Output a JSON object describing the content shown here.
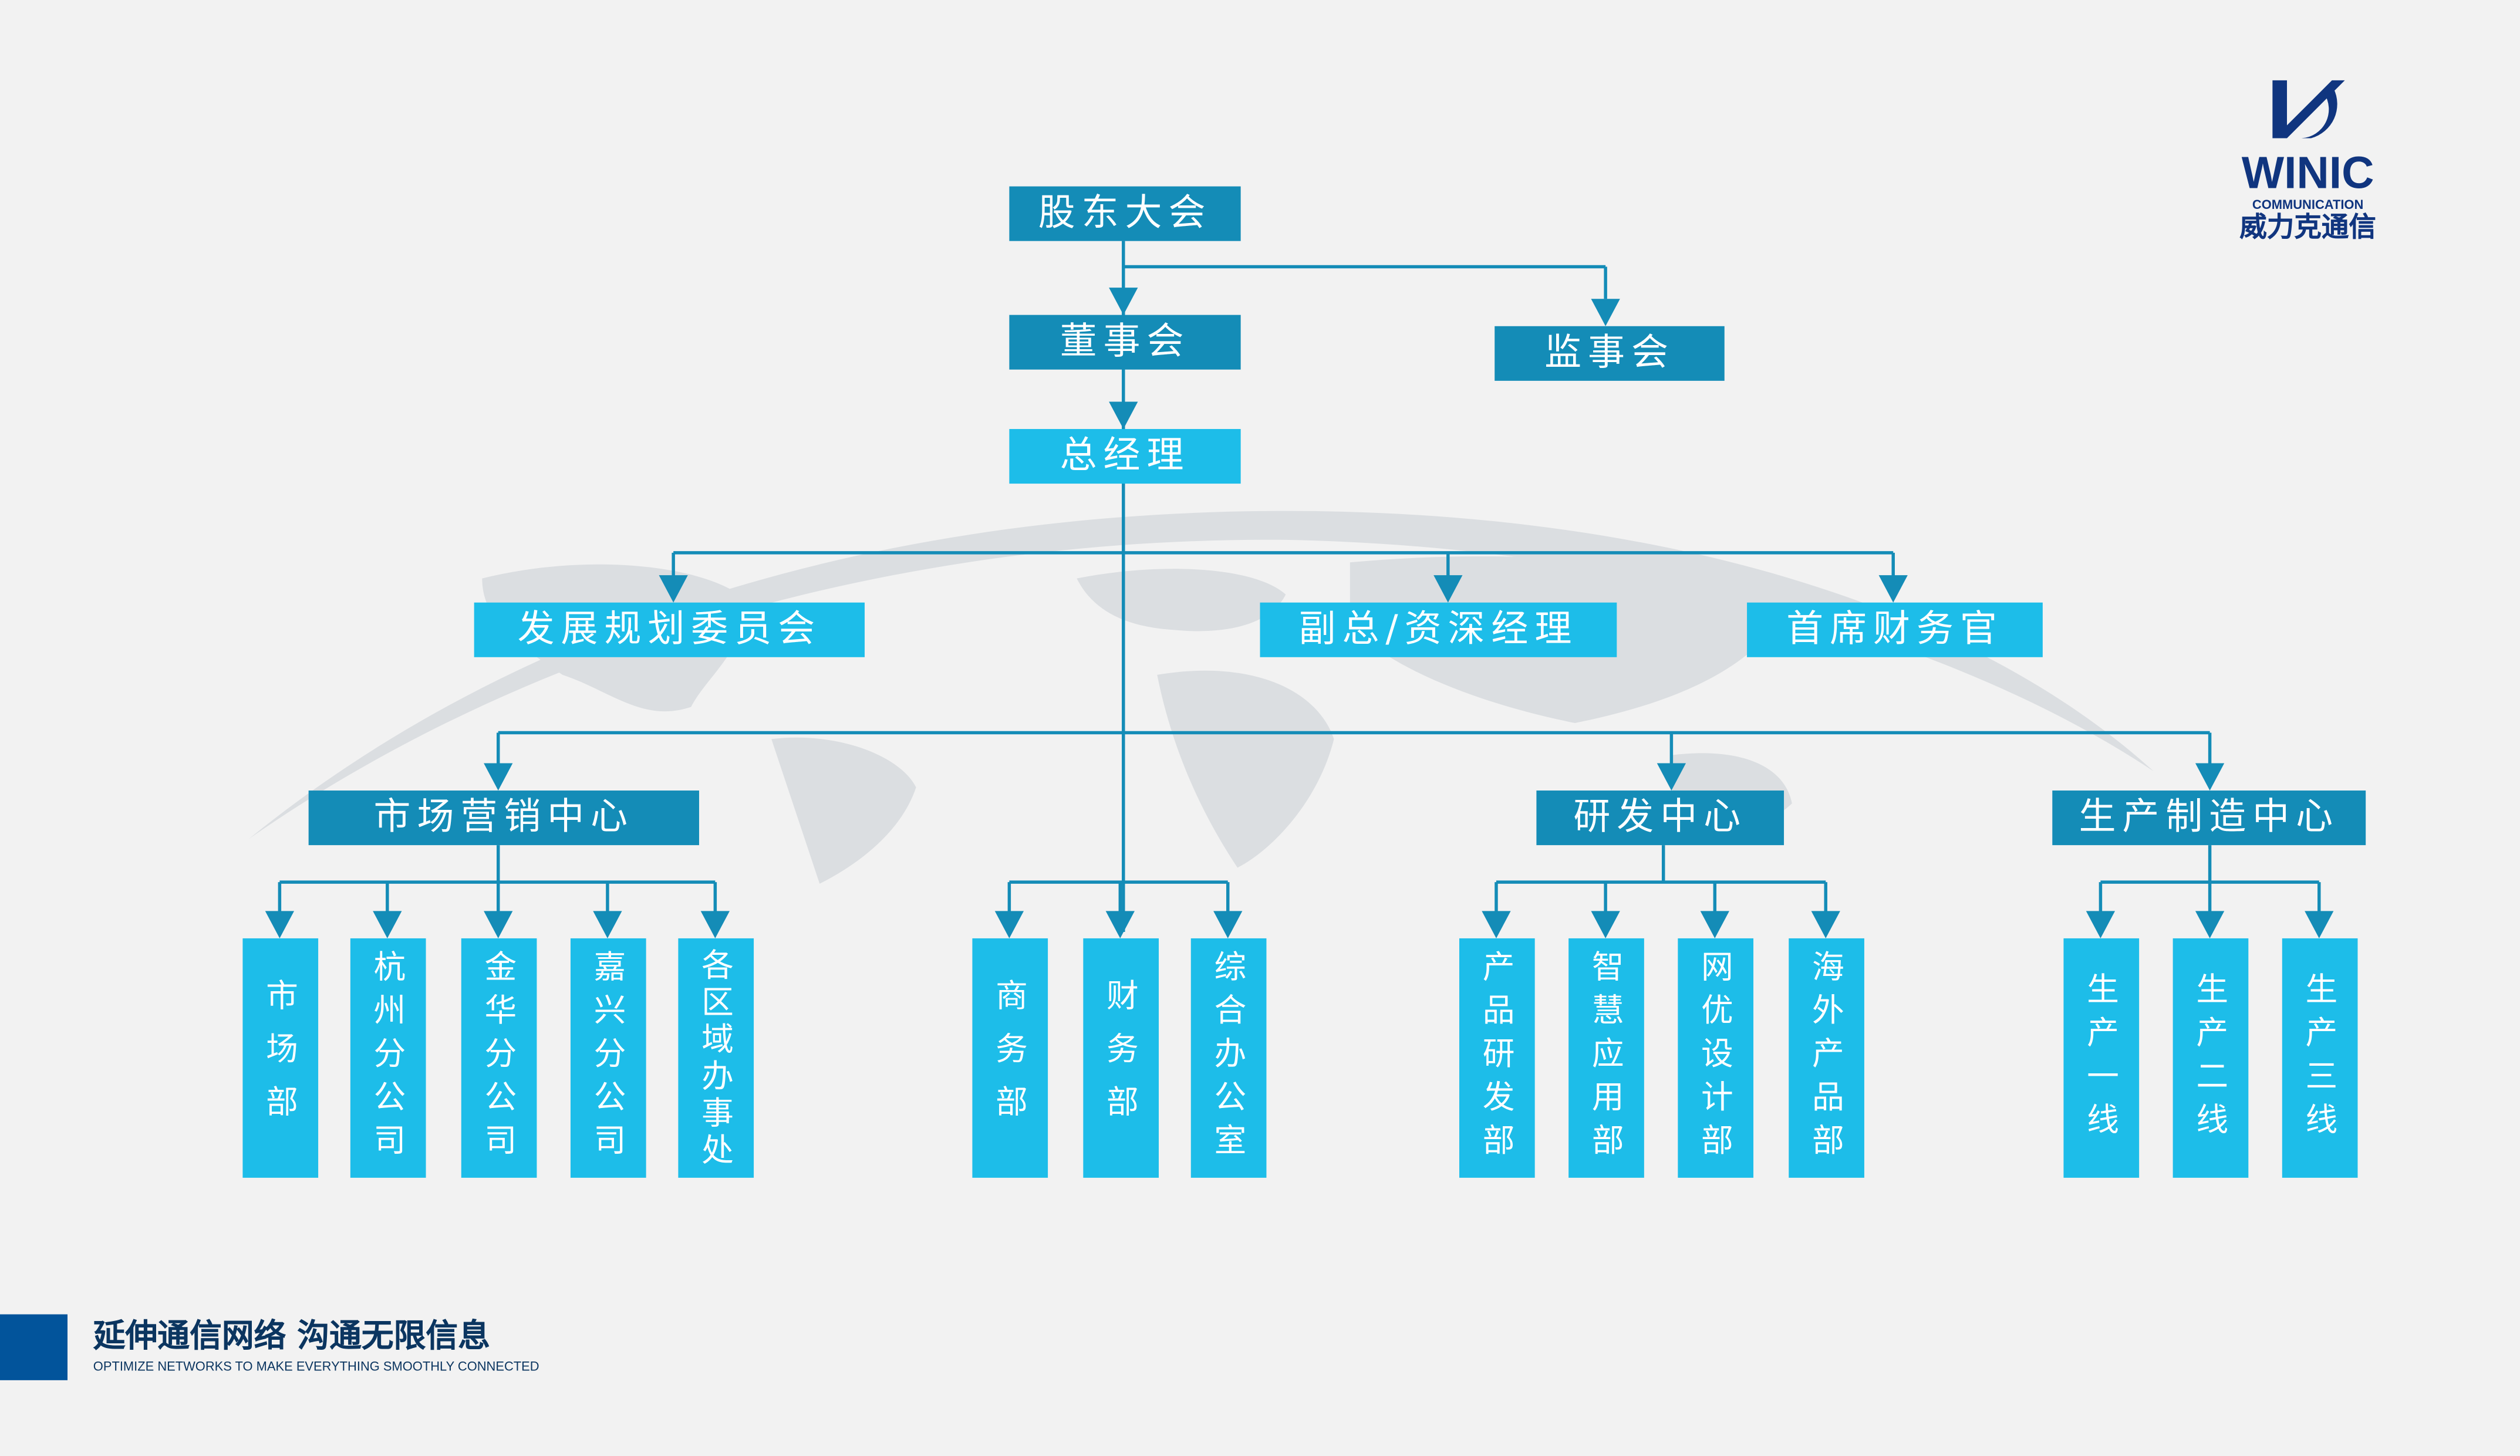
{
  "colors": {
    "dark": "#148cb7",
    "light": "#1dbde9",
    "line": "#148cb7",
    "brand": "#10357f",
    "footer_block": "#02549b",
    "background": "#f2f2f2"
  },
  "logo": {
    "name": "WINIC",
    "sub": "COMMUNICATION",
    "cn": "威力克通信"
  },
  "footer": {
    "slogan": "延伸通信网络 沟通无限信息",
    "tagline": "OPTIMIZE NETWORKS TO MAKE EVERYTHING SMOOTHLY CONNECTED"
  },
  "nodes": {
    "shareholders": "股东大会",
    "board": "董事会",
    "supervisors": "监事会",
    "gm": "总经理",
    "planning": "发展规划委员会",
    "vp": "副总/资深经理",
    "cfo": "首席财务官",
    "marketing_center": "市场营销中心",
    "rd_center": "研发中心",
    "manufacturing_center": "生产制造中心"
  },
  "departments": {
    "marketing": [
      "市场部",
      "杭州分公司",
      "金华分公司",
      "嘉兴分公司",
      "各区域办事处"
    ],
    "direct": [
      "商务部",
      "财务部",
      "综合办公室"
    ],
    "rd": [
      "产品研发部",
      "智慧应用部",
      "网优设计部",
      "海外产品部"
    ],
    "manufacturing": [
      "生产一线",
      "生产二线",
      "生产三线"
    ]
  }
}
